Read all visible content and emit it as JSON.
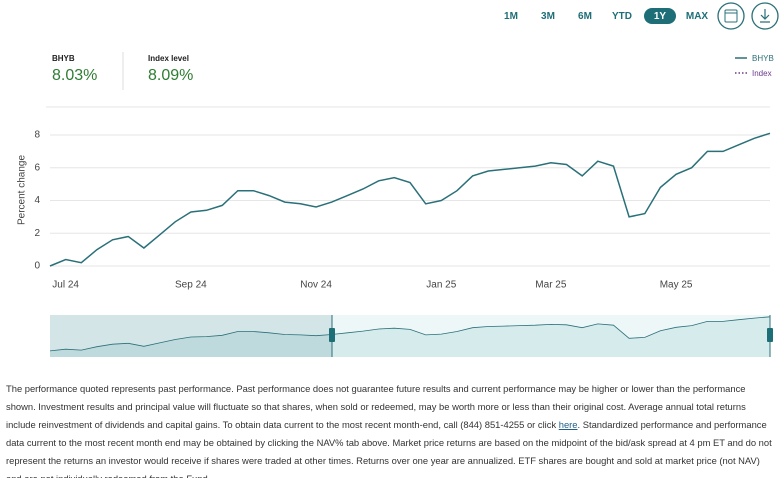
{
  "range_buttons": {
    "options": [
      "1M",
      "3M",
      "6M",
      "YTD",
      "1Y",
      "MAX"
    ],
    "selected_index": 4
  },
  "stats": [
    {
      "label": "BHYB",
      "value": "8.03%"
    },
    {
      "label": "Index level",
      "value": "8.09%"
    }
  ],
  "chart_data": {
    "type": "line",
    "y_label": "Percent change",
    "categories": [
      null,
      "Jul 24",
      null,
      null,
      null,
      null,
      null,
      null,
      null,
      "Sep 24",
      null,
      null,
      null,
      null,
      null,
      null,
      null,
      "Nov 24",
      null,
      null,
      null,
      null,
      null,
      null,
      null,
      "Jan 25",
      null,
      null,
      null,
      null,
      null,
      null,
      "Mar 25",
      null,
      null,
      null,
      null,
      null,
      null,
      null,
      "May 25",
      null,
      null,
      null,
      null,
      null,
      null
    ],
    "series": [
      {
        "name": "BHYB",
        "color": "#2a7079",
        "values": [
          0.0,
          0.4,
          0.2,
          1.0,
          1.6,
          1.8,
          1.1,
          1.9,
          2.7,
          3.3,
          3.4,
          3.7,
          4.6,
          4.6,
          4.3,
          3.9,
          3.8,
          3.6,
          3.9,
          4.3,
          4.7,
          5.2,
          5.4,
          5.1,
          3.8,
          4.0,
          4.6,
          5.5,
          5.8,
          5.9,
          6.0,
          6.1,
          6.3,
          6.2,
          5.5,
          6.4,
          6.1,
          3.0,
          3.2,
          4.8,
          5.6,
          6.0,
          7.0,
          7.0,
          7.4,
          7.8,
          8.1
        ]
      }
    ],
    "legend": [
      {
        "name": "BHYB",
        "color": "#2a7079",
        "dash": "solid"
      },
      {
        "name": "Index",
        "color": "#6b3a8c",
        "dash": "dotted"
      }
    ],
    "ylim": [
      -0.5,
      9
    ],
    "yticks": [
      0,
      2,
      4,
      6,
      8
    ],
    "grid": true
  },
  "disclaimer": {
    "before": "The performance quoted represents past performance. Past performance does not guarantee future results and current performance may be higher or lower than the performance shown. Investment results and principal value will fluctuate so that shares, when sold or redeemed, may be worth more or less than their original cost. Average annual total returns include reinvestment of dividends and capital gains. To obtain data current to the most recent month-end, call (844) 851-4255 or click ",
    "link": "here",
    "after": ". Standardized performance and performance data current to the most recent month end may be obtained by clicking the NAV% tab above. Market price returns are based on the midpoint of the bid/ask spread at 4 pm ET and do not represent the returns an investor would receive if shares were traded at other times. Returns over one year are annualized. ETF shares are bought and sold at market price (not NAV) and are not individually redeemed from the Fund."
  }
}
